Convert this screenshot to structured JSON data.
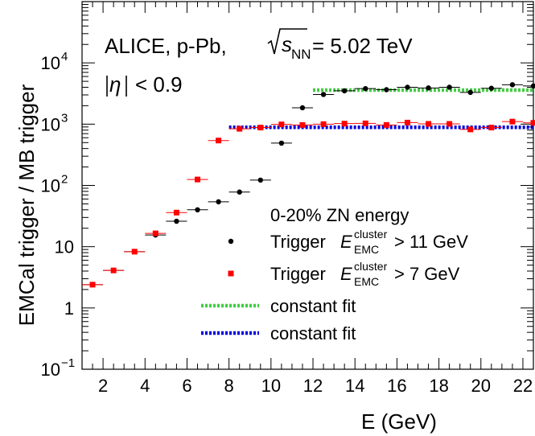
{
  "chart_data": {
    "type": "scatter",
    "title": "",
    "xlabel": "E (GeV)",
    "ylabel": "EMCal trigger / MB trigger",
    "xlim": [
      1,
      22.5
    ],
    "ylim": [
      0.1,
      100000
    ],
    "yscale": "log",
    "x_ticks": [
      2,
      4,
      6,
      8,
      10,
      12,
      14,
      16,
      18,
      20,
      22
    ],
    "y_ticks": [
      {
        "value": 0.1,
        "label": "10",
        "exp": "−1"
      },
      {
        "value": 1,
        "label": "1",
        "exp": ""
      },
      {
        "value": 10,
        "label": "10",
        "exp": ""
      },
      {
        "value": 100,
        "label": "10",
        "exp": "2"
      },
      {
        "value": 1000,
        "label": "10",
        "exp": "3"
      },
      {
        "value": 10000,
        "label": "10",
        "exp": "4"
      }
    ],
    "annotations": {
      "system": "ALICE, p-Pb,",
      "energy": "= 5.02 TeV",
      "sqrt_s": "s",
      "sqrt_sub": "NN",
      "eta": "η",
      "eta_cut": "< 0.9",
      "centrality": "0-20% ZN energy"
    },
    "legend_entries": [
      {
        "prefix": "Trigger ",
        "var": "E",
        "sup": "cluster",
        "sub": "EMC",
        "suffix": " > 11 GeV",
        "marker": "circle",
        "color": "#000000"
      },
      {
        "prefix": "Trigger ",
        "var": "E",
        "sup": "cluster",
        "sub": "EMC",
        "suffix": " > 7 GeV",
        "marker": "square",
        "color": "#ff0000"
      },
      {
        "text": "constant fit",
        "marker": "dotted-line",
        "color": "#44cc44"
      },
      {
        "text": "constant fit",
        "marker": "dotted-line",
        "color": "#0000dd"
      }
    ],
    "grid": false,
    "series": [
      {
        "marker": "circle",
        "color": "#000000",
        "x": [
          1.5,
          2.5,
          3.5,
          4.5,
          5.5,
          6.5,
          7.5,
          8.5,
          9.5,
          10.5,
          11.5,
          12.5,
          13.5,
          14.5,
          15.5,
          16.5,
          17.5,
          18.5,
          19.5,
          20.5,
          21.5,
          22.5
        ],
        "y": [
          2.4,
          4.1,
          8.3,
          15.5,
          26,
          40,
          54,
          78,
          122,
          490,
          1850,
          3050,
          3500,
          3800,
          3650,
          4000,
          3900,
          4000,
          3300,
          3850,
          4400,
          4200
        ]
      },
      {
        "marker": "square",
        "color": "#ff0000",
        "x": [
          1.5,
          2.5,
          3.5,
          4.5,
          5.5,
          6.5,
          7.5,
          8.5,
          9.5,
          10.5,
          11.5,
          12.5,
          13.5,
          14.5,
          15.5,
          16.5,
          17.5,
          18.5,
          19.5,
          20.5,
          21.5,
          22.5
        ],
        "y": [
          2.4,
          4.1,
          8.3,
          16.5,
          36,
          125,
          540,
          840,
          880,
          990,
          970,
          1000,
          1020,
          1030,
          970,
          1060,
          1010,
          1010,
          820,
          880,
          1100,
          1050
        ]
      }
    ],
    "fits": [
      {
        "color": "#44cc44",
        "x_range": [
          12,
          22.5
        ],
        "y": 3600
      },
      {
        "color": "#0000dd",
        "x_range": [
          8,
          22.5
        ],
        "y": 890
      }
    ]
  }
}
